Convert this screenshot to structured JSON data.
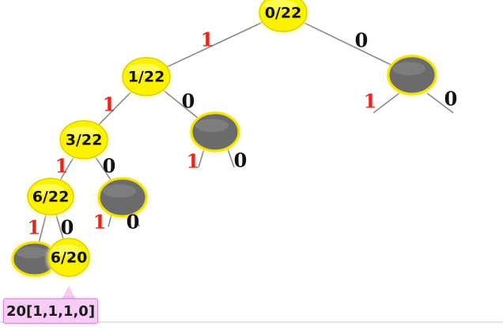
{
  "diagram": {
    "colors": {
      "node_fill": "#fbf200",
      "node_stroke": "#d6c800",
      "pruned_fill": "#6b6b6b",
      "edge": "#8a8a8a",
      "one_label": "#e2281e",
      "zero_label": "#111111",
      "callout_fill": "#f6ccf4"
    },
    "nodes": [
      {
        "id": "root",
        "label": "0/22",
        "pruned": false
      },
      {
        "id": "n1",
        "label": "1/22",
        "pruned": false
      },
      {
        "id": "p_right",
        "label": "",
        "pruned": true
      },
      {
        "id": "n2",
        "label": "3/22",
        "pruned": false
      },
      {
        "id": "p_mid",
        "label": "",
        "pruned": true
      },
      {
        "id": "n3",
        "label": "6/22",
        "pruned": false
      },
      {
        "id": "p_low",
        "label": "",
        "pruned": true
      },
      {
        "id": "p_leaf",
        "label": "",
        "pruned": true
      },
      {
        "id": "leaf",
        "label": "6/20",
        "pruned": false
      }
    ],
    "edges": [
      {
        "id": "root-n1",
        "label": "1"
      },
      {
        "id": "root-p_right",
        "label": "0"
      },
      {
        "id": "n1-n2",
        "label": "1"
      },
      {
        "id": "n1-p_mid",
        "label": "0"
      },
      {
        "id": "n2-n3",
        "label": "1"
      },
      {
        "id": "n2-p_low",
        "label": "0"
      },
      {
        "id": "n3-p_leaf",
        "label": "1"
      },
      {
        "id": "n3-leaf",
        "label": "0"
      },
      {
        "id": "p_right-stub-left",
        "label": "1"
      },
      {
        "id": "p_right-stub-right",
        "label": "0"
      },
      {
        "id": "p_mid-stub-left",
        "label": "1"
      },
      {
        "id": "p_mid-stub-right",
        "label": "0"
      },
      {
        "id": "p_low-stub-left",
        "label": "1"
      },
      {
        "id": "p_low-stub-right",
        "label": "0"
      }
    ],
    "callout": {
      "text": "20[1,1,1,0]"
    }
  }
}
